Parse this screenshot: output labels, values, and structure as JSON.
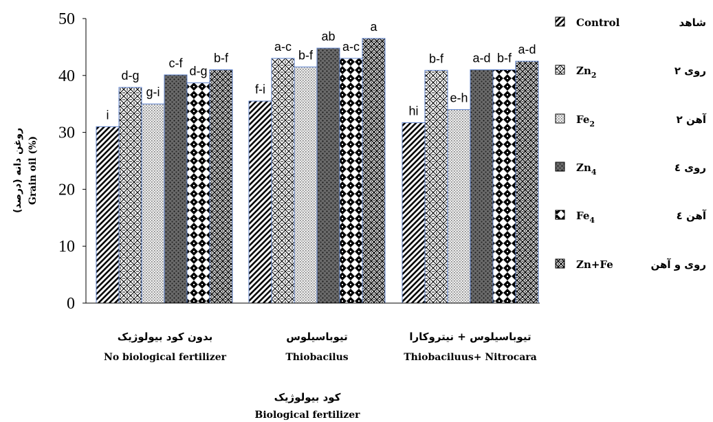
{
  "chart_data": {
    "type": "bar",
    "ylabel": "روغن دانه (درصد)",
    "ylabel_en": "Grain oil (%)",
    "xlabel": "کود بیولوژیک",
    "xlabel_en": "Biological fertilizer",
    "ylim": [
      0,
      50
    ],
    "yticks": [
      "0",
      "10",
      "20",
      "30",
      "40",
      "50"
    ],
    "grid": false,
    "legend_position": "right",
    "categories": [
      {
        "fa": "بدون کود بیولوژیک",
        "en": "No biological fertilizer"
      },
      {
        "fa": "تیوباسیلوس",
        "en": "Thiobacilus"
      },
      {
        "fa": "تیوباسیلوس + نیتروکارا",
        "en": "Thiobaciluus+ Nitrocara"
      }
    ],
    "series": [
      {
        "name": "Control",
        "name_fa": "شاهد",
        "pattern": "diag-stripes",
        "values": [
          31,
          35.5,
          31.7
        ],
        "letters": [
          "i",
          "f-i",
          "hi"
        ]
      },
      {
        "name": "Zn2",
        "name_fa": "روی ۲",
        "pattern": "weave",
        "values": [
          37.9,
          43,
          40.9
        ],
        "letters": [
          "d-g",
          "a-c",
          "b-f"
        ]
      },
      {
        "name": "Fe2",
        "name_fa": "آهن ۲",
        "pattern": "fine-dots",
        "values": [
          35,
          41.5,
          34
        ],
        "letters": [
          "g-i",
          "b-f",
          "e-h"
        ]
      },
      {
        "name": "Zn4",
        "name_fa": "روی ٤",
        "pattern": "dark-dots",
        "values": [
          40.1,
          44.8,
          41
        ],
        "letters": [
          "c-f",
          "ab",
          "a-d"
        ]
      },
      {
        "name": "Fe4",
        "name_fa": "آهن ٤",
        "pattern": "checker",
        "values": [
          38.7,
          43,
          41
        ],
        "letters": [
          "d-g",
          "a-c",
          "b-f"
        ]
      },
      {
        "name": "Zn+Fe",
        "name_fa": "روی و آهن",
        "pattern": "weave-dense",
        "values": [
          41,
          46.5,
          42.5
        ],
        "letters": [
          "b-f",
          "a",
          "a-d"
        ]
      }
    ],
    "colors": {
      "bar_outline": "#5b7fc9",
      "ink": "#000000"
    }
  }
}
